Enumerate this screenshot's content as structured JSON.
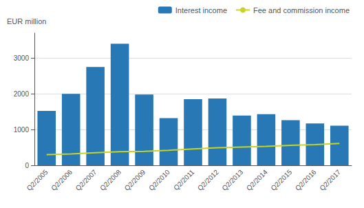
{
  "chart_data": {
    "type": "bar",
    "categories": [
      "Q2/2005",
      "Q2/2006",
      "Q2/2007",
      "Q2/2008",
      "Q2/2009",
      "Q2/2010",
      "Q2/2011",
      "Q2/2012",
      "Q2/2013",
      "Q2/2014",
      "Q2/2015",
      "Q2/2016",
      "Q2/2017"
    ],
    "series": [
      {
        "name": "Interest income",
        "type": "bar",
        "color": "#2878b5",
        "values": [
          1520,
          2000,
          2750,
          3400,
          1980,
          1320,
          1850,
          1870,
          1390,
          1430,
          1260,
          1170,
          1110
        ]
      },
      {
        "name": "Fee and commission income",
        "type": "line",
        "color": "#c8d422",
        "values": [
          300,
          320,
          350,
          380,
          390,
          420,
          460,
          490,
          510,
          530,
          560,
          580,
          610
        ]
      }
    ],
    "ylabel": "EUR million",
    "ylim": [
      0,
      3700
    ],
    "yticks": [
      0,
      1000,
      2000,
      3000
    ],
    "grid": true,
    "legend": "upper right"
  }
}
